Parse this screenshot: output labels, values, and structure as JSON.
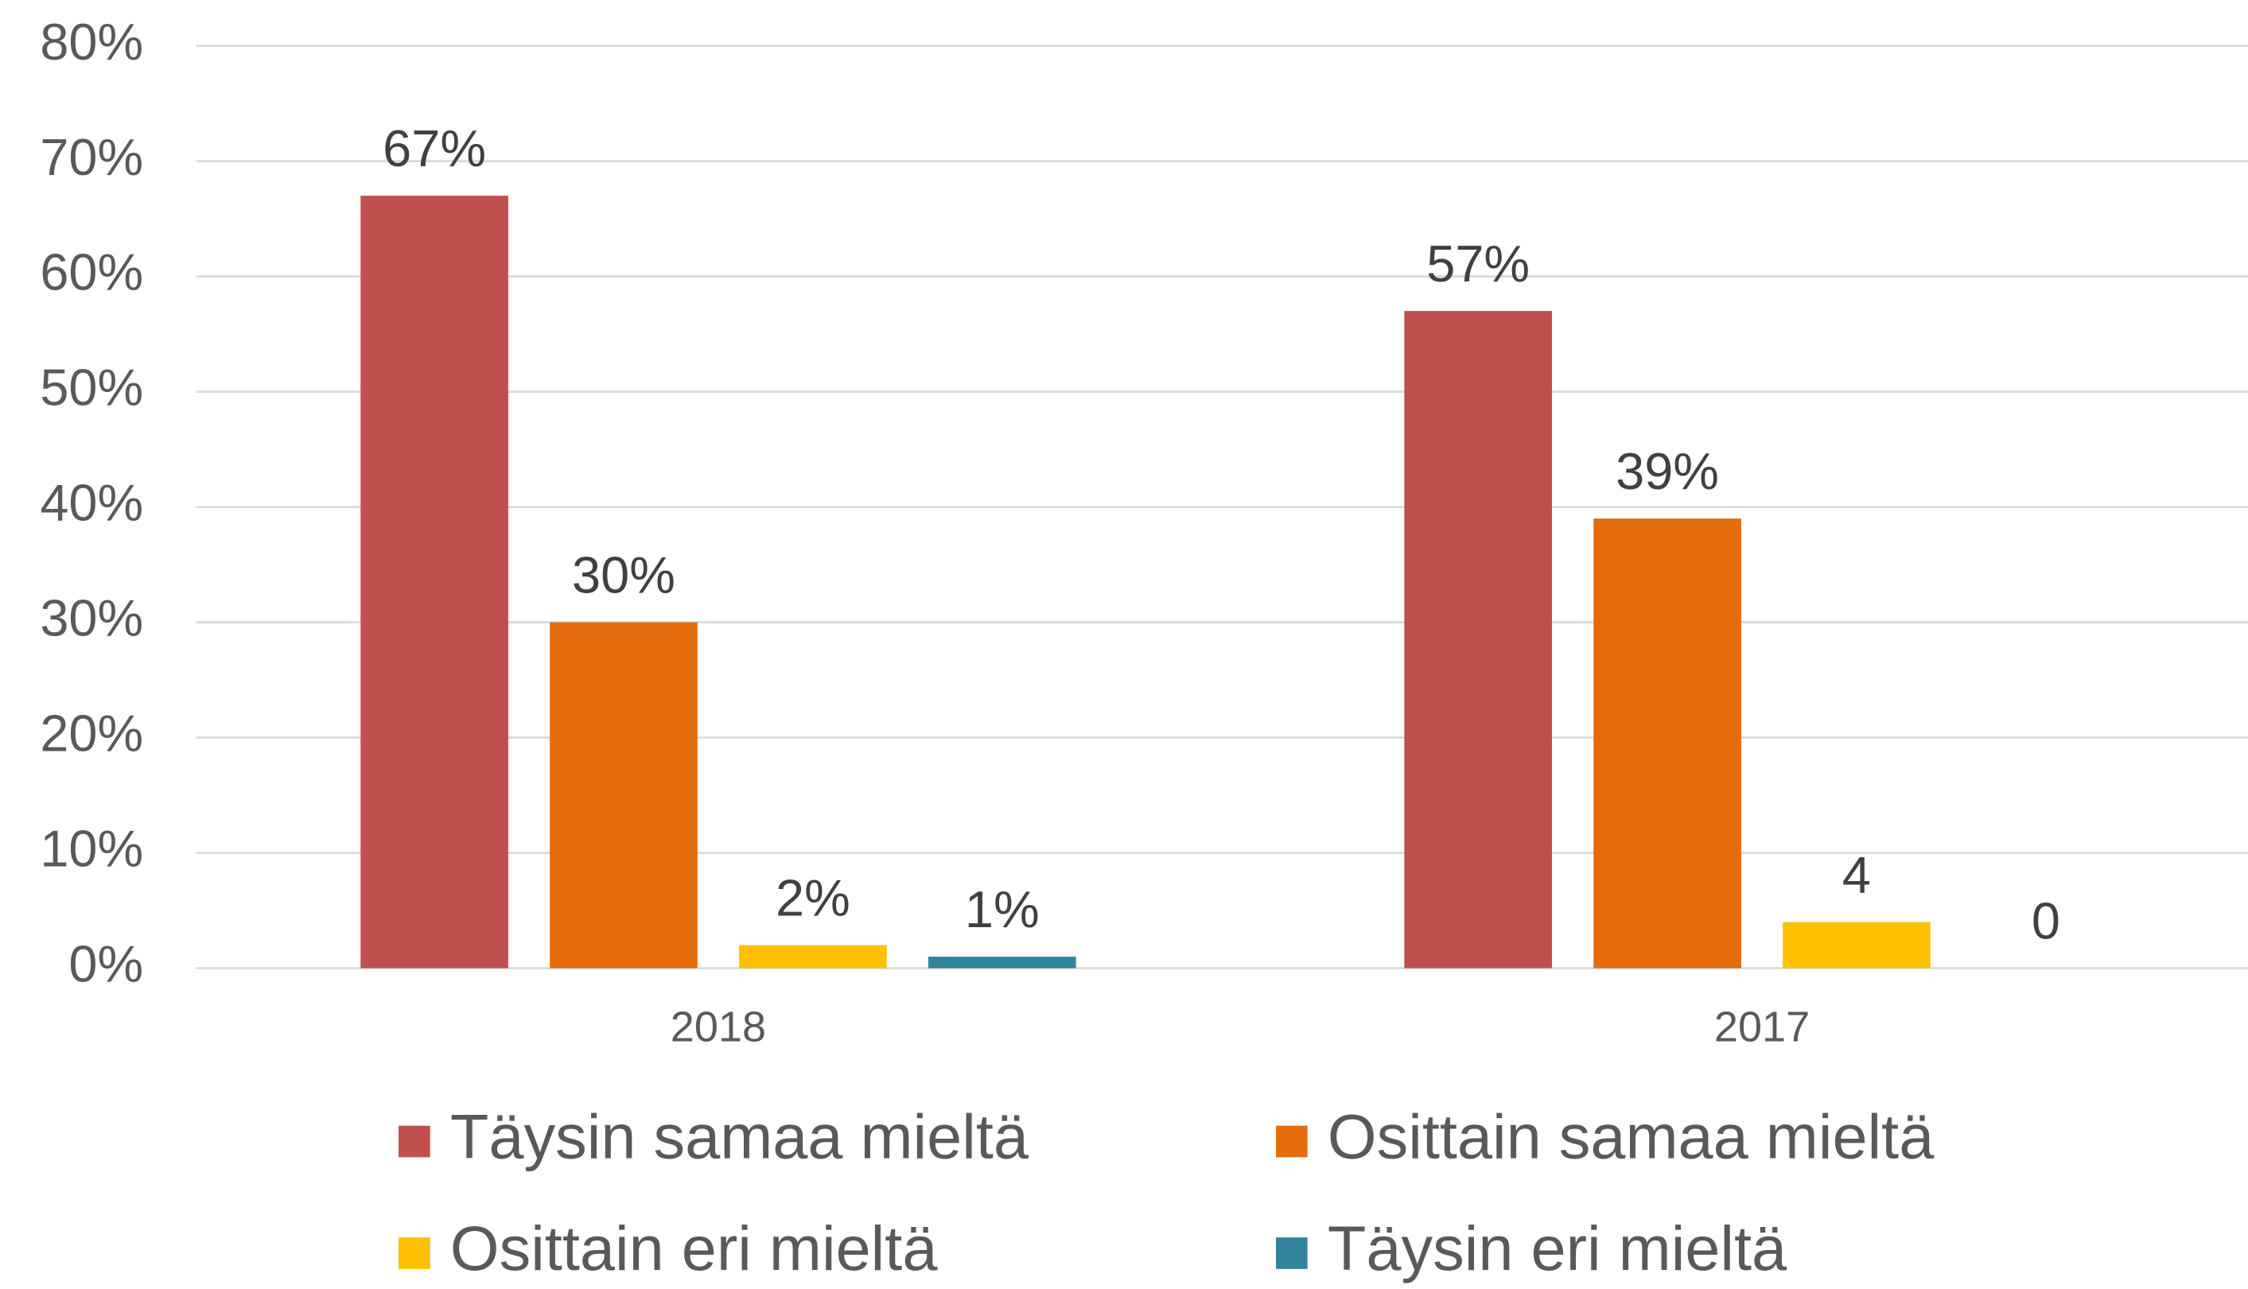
{
  "chart_data": {
    "type": "bar",
    "categories": [
      "2018",
      "2017"
    ],
    "series": [
      {
        "name": "Täysin samaa mieltä",
        "color": "#c0504d",
        "values": [
          67,
          57
        ],
        "value_labels": [
          "67%",
          "57%"
        ]
      },
      {
        "name": "Osittain samaa mieltä",
        "color": "#e46c0a",
        "values": [
          30,
          39
        ],
        "value_labels": [
          "30%",
          "39%"
        ]
      },
      {
        "name": "Osittain eri mieltä",
        "color": "#ffc000",
        "values": [
          2,
          4
        ],
        "value_labels": [
          "2%",
          "4"
        ]
      },
      {
        "name": "Täysin eri mieltä",
        "color": "#31849b",
        "values": [
          1,
          0
        ],
        "value_labels": [
          "1%",
          "0"
        ]
      }
    ],
    "ylim": [
      0,
      80
    ],
    "yticks": [
      {
        "value": 0,
        "label": "0%"
      },
      {
        "value": 10,
        "label": "10%"
      },
      {
        "value": 20,
        "label": "20%"
      },
      {
        "value": 30,
        "label": "30%"
      },
      {
        "value": 40,
        "label": "40%"
      },
      {
        "value": 50,
        "label": "50%"
      },
      {
        "value": 60,
        "label": "60%"
      },
      {
        "value": 70,
        "label": "70%"
      },
      {
        "value": 80,
        "label": "80%"
      }
    ],
    "grid": true,
    "legend": "bottom"
  }
}
